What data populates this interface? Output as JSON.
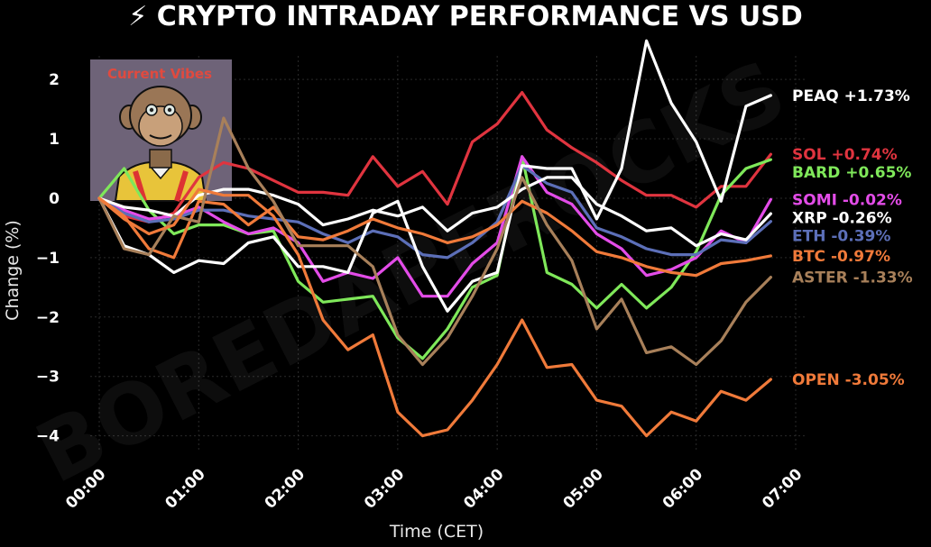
{
  "chart_data": {
    "type": "line",
    "title": "⚡ CRYPTO INTRADAY PERFORMANCE VS USD",
    "xlabel": "Time (CET)",
    "ylabel": "Change (%)",
    "xlim": [
      0,
      7
    ],
    "ylim": [
      -4.4,
      2.7
    ],
    "x_ticks": [
      "00:00",
      "01:00",
      "02:00",
      "03:00",
      "04:00",
      "05:00",
      "06:00",
      "07:00"
    ],
    "y_ticks": [
      2,
      1,
      0,
      -1,
      -2,
      -3,
      -4
    ],
    "y_tick_labels": [
      "2",
      "1",
      "0",
      "−1",
      "−2",
      "−3",
      "−4"
    ],
    "grid": true,
    "x": [
      0,
      0.25,
      0.5,
      0.75,
      1,
      1.25,
      1.5,
      1.75,
      2,
      2.25,
      2.5,
      2.75,
      3,
      3.25,
      3.5,
      3.75,
      4,
      4.25,
      4.5,
      4.75,
      5,
      5.25,
      5.5,
      5.75,
      6,
      6.25,
      6.5,
      6.75
    ],
    "series": [
      {
        "name": "SOL",
        "label": "SOL +0.74%",
        "color": "#e0343f",
        "values": [
          0,
          -0.3,
          -0.4,
          -0.25,
          0.35,
          0.6,
          0.5,
          0.3,
          0.1,
          0.1,
          0.05,
          0.7,
          0.2,
          0.45,
          -0.1,
          0.95,
          1.25,
          1.78,
          1.15,
          0.85,
          0.6,
          0.3,
          0.05,
          0.05,
          -0.15,
          0.2,
          0.2,
          0.74
        ]
      },
      {
        "name": "BARD",
        "label": "BARD +0.65%",
        "color": "#7fe85a",
        "values": [
          0,
          0.5,
          -0.2,
          -0.6,
          -0.45,
          -0.45,
          -0.6,
          -0.55,
          -1.4,
          -1.75,
          -1.7,
          -1.65,
          -2.35,
          -2.7,
          -2.2,
          -1.5,
          -1.3,
          0.7,
          -1.25,
          -1.45,
          -1.85,
          -1.45,
          -1.85,
          -1.5,
          -0.9,
          0.05,
          0.5,
          0.65
        ]
      },
      {
        "name": "SOMI",
        "label": "SOMI -0.02%",
        "color": "#e34ce8",
        "values": [
          0,
          -0.2,
          -0.35,
          -0.3,
          -0.15,
          -0.4,
          -0.6,
          -0.5,
          -0.75,
          -1.4,
          -1.25,
          -1.35,
          -1.0,
          -1.65,
          -1.65,
          -1.1,
          -0.75,
          0.7,
          0.1,
          -0.1,
          -0.6,
          -0.85,
          -1.3,
          -1.2,
          -1.0,
          -0.55,
          -0.75,
          -0.02
        ]
      },
      {
        "name": "ETH",
        "label": "ETH -0.39%",
        "color": "#5c6fb8",
        "values": [
          0,
          -0.25,
          -0.4,
          -0.35,
          -0.2,
          -0.2,
          -0.3,
          -0.35,
          -0.4,
          -0.6,
          -0.75,
          -0.55,
          -0.65,
          -0.95,
          -1.0,
          -0.75,
          -0.4,
          0.55,
          0.25,
          0.1,
          -0.5,
          -0.65,
          -0.85,
          -0.95,
          -0.95,
          -0.7,
          -0.75,
          -0.39
        ]
      },
      {
        "name": "XRP",
        "label": "XRP -0.26%",
        "color": "#ffffff",
        "values": [
          0,
          -0.15,
          -0.2,
          -0.3,
          0.05,
          0.15,
          0.15,
          0.05,
          -0.1,
          -0.45,
          -0.35,
          -0.2,
          -0.3,
          -0.15,
          -0.55,
          -0.25,
          -0.15,
          0.15,
          0.35,
          0.35,
          -0.1,
          -0.3,
          -0.55,
          -0.5,
          -0.8,
          -0.6,
          -0.7,
          -0.26
        ]
      },
      {
        "name": "PEAQ",
        "label": "PEAQ +1.73%",
        "color": "#ffffff",
        "values": [
          0,
          -0.8,
          -0.95,
          -1.25,
          -1.05,
          -1.1,
          -0.75,
          -0.65,
          -1.15,
          -1.15,
          -1.25,
          -0.25,
          -0.05,
          -1.15,
          -1.9,
          -1.4,
          -1.25,
          0.55,
          0.5,
          0.5,
          -0.35,
          0.5,
          2.65,
          1.6,
          0.95,
          -0.05,
          1.55,
          1.73
        ]
      },
      {
        "name": "BTC",
        "label": "BTC -0.97%",
        "color": "#f07a3a",
        "values": [
          0,
          -0.3,
          -0.85,
          -1.0,
          -0.05,
          -0.1,
          -0.45,
          -0.15,
          -0.65,
          -0.7,
          -0.55,
          -0.35,
          -0.5,
          -0.6,
          -0.75,
          -0.65,
          -0.45,
          -0.05,
          -0.25,
          -0.55,
          -0.9,
          -1.0,
          -1.15,
          -1.25,
          -1.3,
          -1.1,
          -1.05,
          -0.97
        ]
      },
      {
        "name": "ASTER",
        "label": "ASTER -1.33%",
        "color": "#a8805a",
        "values": [
          0,
          -0.85,
          -0.95,
          -0.3,
          -0.4,
          1.35,
          0.5,
          -0.05,
          -0.8,
          -0.8,
          -0.8,
          -1.15,
          -2.3,
          -2.8,
          -2.35,
          -1.65,
          -0.85,
          0.35,
          -0.45,
          -1.05,
          -2.2,
          -1.7,
          -2.6,
          -2.5,
          -2.8,
          -2.4,
          -1.75,
          -1.33
        ]
      },
      {
        "name": "OPEN",
        "label": "OPEN -3.05%",
        "color": "#f07a3a",
        "values": [
          0,
          -0.35,
          -0.6,
          -0.45,
          0.15,
          0.05,
          0.05,
          -0.3,
          -0.95,
          -2.05,
          -2.55,
          -2.3,
          -3.6,
          -4.0,
          -3.9,
          -3.4,
          -2.8,
          -2.05,
          -2.85,
          -2.8,
          -3.4,
          -3.5,
          -4.0,
          -3.6,
          -3.75,
          -3.25,
          -3.4,
          -3.05
        ]
      }
    ],
    "end_labels": [
      {
        "series": "PEAQ",
        "label": "PEAQ +1.73%",
        "color": "#ffffff"
      },
      {
        "series": "SOL",
        "label": "SOL +0.74%",
        "color": "#e0343f"
      },
      {
        "series": "BARD",
        "label": "BARD +0.65%",
        "color": "#7fe85a"
      },
      {
        "series": "SOMI",
        "label": "SOMI -0.02%",
        "color": "#e34ce8"
      },
      {
        "series": "ETH",
        "label": "ETH -0.39%",
        "color": "#5c6fb8"
      },
      {
        "series": "XRP",
        "label": "XRP -0.26%",
        "color": "#ffffff"
      },
      {
        "series": "BTC",
        "label": "BTC -0.97%",
        "color": "#f07a3a"
      },
      {
        "series": "ASTER",
        "label": "ASTER -1.33%",
        "color": "#a8805a"
      },
      {
        "series": "OPEN",
        "label": "OPEN -3.05%",
        "color": "#f07a3a"
      }
    ],
    "watermark": "BOREDAPEROCKS",
    "inset": {
      "caption": "Current Vibes",
      "icon": "bored-ape-icon"
    }
  }
}
